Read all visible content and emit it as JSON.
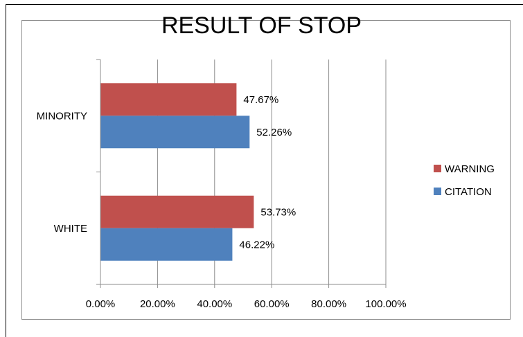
{
  "chart_data": {
    "type": "bar",
    "orientation": "horizontal",
    "title": "RESULT OF STOP",
    "categories": [
      "MINORITY",
      "WHITE"
    ],
    "series": [
      {
        "name": "WARNING",
        "color": "#c0504d",
        "values": [
          47.67,
          53.73
        ],
        "labels": [
          "47.67%",
          "53.73%"
        ]
      },
      {
        "name": "CITATION",
        "color": "#4f81bd",
        "values": [
          52.26,
          46.22
        ],
        "labels": [
          "52.26%",
          "46.22%"
        ]
      }
    ],
    "x_ticks": [
      "0.00%",
      "20.00%",
      "40.00%",
      "60.00%",
      "80.00%",
      "100.00%"
    ],
    "xlim": [
      0,
      100
    ],
    "grid": "vertical major gridlines",
    "legend_position": "right"
  }
}
